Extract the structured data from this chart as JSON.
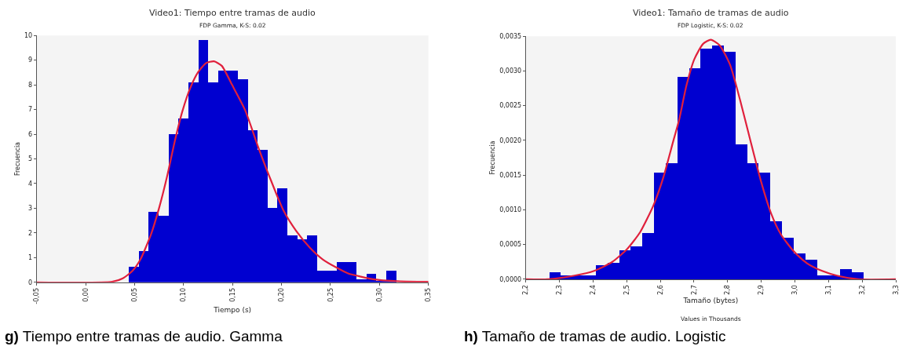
{
  "chart_data": [
    {
      "type": "histogram",
      "title": "Video1: Tiempo entre tramas de audio",
      "subtitle": "FDP Gamma, K-S: 0.02",
      "xlabel": "Tiempo (s)",
      "ylabel": "Frecuencia",
      "bins": [
        0.044,
        0.0541,
        0.0642,
        0.0743,
        0.0844,
        0.0945,
        0.1046,
        0.1147,
        0.1248,
        0.1349,
        0.145,
        0.1551,
        0.1652,
        0.1753,
        0.1854,
        0.1955,
        0.2056,
        0.2157,
        0.2258,
        0.2359,
        0.246,
        0.2561,
        0.2662,
        0.2763,
        0.2864,
        0.2965,
        0.3066,
        0.3167
      ],
      "values": [
        0.62,
        1.27,
        2.86,
        2.69,
        6.01,
        6.64,
        8.08,
        9.82,
        8.08,
        8.56,
        8.56,
        8.23,
        6.17,
        5.37,
        3.01,
        3.81,
        1.9,
        1.74,
        1.9,
        0.47,
        0.47,
        0.8,
        0.8,
        0.13,
        0.33,
        0.03,
        0.47
      ],
      "color": "#0000d0",
      "series": [
        {
          "type": "line",
          "color": "#e0203c",
          "x": [
            -0.05,
            0.027,
            0.038,
            0.048,
            0.056,
            0.067,
            0.075,
            0.083,
            0.091,
            0.099,
            0.107,
            0.115,
            0.123,
            0.131,
            0.139,
            0.1495,
            0.163,
            0.176,
            0.189,
            0.202,
            0.215,
            0.229,
            0.242,
            0.255,
            0.268,
            0.281,
            0.295,
            0.308,
            0.321,
            0.35
          ],
          "values": [
            0,
            0.02,
            0.16,
            0.47,
            0.93,
            1.97,
            3.01,
            4.26,
            5.71,
            6.96,
            7.89,
            8.52,
            8.88,
            8.95,
            8.77,
            8.0,
            6.96,
            5.5,
            4.15,
            2.91,
            2.08,
            1.4,
            0.93,
            0.62,
            0.36,
            0.23,
            0.12,
            0.07,
            0.04,
            0.02
          ]
        }
      ],
      "xlim": [
        -0.05,
        0.35
      ],
      "xticks": [
        {
          "value": -0.05,
          "label": "-0,05"
        },
        {
          "value": 0,
          "label": "0,00"
        },
        {
          "value": 0.05,
          "label": "0,05"
        },
        {
          "value": 0.1,
          "label": "0,10"
        },
        {
          "value": 0.15,
          "label": "0,15"
        },
        {
          "value": 0.2,
          "label": "0,20"
        },
        {
          "value": 0.25,
          "label": "0,25"
        },
        {
          "value": 0.3,
          "label": "0,30"
        },
        {
          "value": 0.35,
          "label": "0,35"
        }
      ],
      "ylim": [
        0,
        10
      ],
      "yticks": [
        0,
        1,
        2,
        3,
        4,
        5,
        6,
        7,
        8,
        9,
        10
      ],
      "grid": false,
      "annotations": [
        "g) Tiempo entre tramas de audio. Gamma"
      ]
    },
    {
      "type": "histogram",
      "title": "Video1: Tamaño de tramas de audio",
      "subtitle": "FDP Logistic, K-S: 0.02",
      "xlabel": "Tamaño (bytes)",
      "ylabel": "Frecuencia",
      "bins": [
        2.2,
        2.2346,
        2.2692,
        2.3038,
        2.3384,
        2.373,
        2.4076,
        2.4422,
        2.4768,
        2.5114,
        2.546,
        2.5806,
        2.6152,
        2.6498,
        2.6844,
        2.719,
        2.7536,
        2.7882,
        2.8228,
        2.8574,
        2.892,
        2.9266,
        2.9612,
        2.9958,
        3.0304,
        3.065,
        3.0996,
        3.1342,
        3.1688,
        3.2034
      ],
      "values": [
        0,
        0,
        0.0001,
        5e-05,
        5e-05,
        5e-05,
        0.0002,
        0.00024,
        0.00042,
        0.00047,
        0.00066,
        0.00153,
        0.00167,
        0.00291,
        0.00304,
        0.00332,
        0.00337,
        0.00327,
        0.00194,
        0.00167,
        0.00153,
        0.00083,
        0.0006,
        0.00037,
        0.00028,
        5e-05,
        5e-05,
        0.00014,
        0.0001
      ],
      "color": "#0000d0",
      "series": [
        {
          "type": "line",
          "color": "#e0203c",
          "x": [
            2.2,
            2.266,
            2.342,
            2.403,
            2.457,
            2.502,
            2.54,
            2.579,
            2.609,
            2.64,
            2.655,
            2.678,
            2.701,
            2.727,
            2.75,
            2.776,
            2.807,
            2.837,
            2.868,
            2.898,
            2.929,
            2.959,
            2.997,
            3.036,
            3.081,
            3.127,
            3.188,
            3.3
          ],
          "values": [
            0,
            0,
            5e-05,
            0.00012,
            0.00025,
            0.00044,
            0.00068,
            0.00106,
            0.00147,
            0.00202,
            0.00228,
            0.0028,
            0.00317,
            0.00339,
            0.00345,
            0.00337,
            0.00309,
            0.00258,
            0.00199,
            0.00143,
            0.00095,
            0.00064,
            0.0004,
            0.00023,
            0.00012,
            5e-05,
            0,
            0
          ]
        }
      ],
      "xlim": [
        2.2,
        3.3
      ],
      "xticks": [
        {
          "value": 2.2,
          "label": "2,2"
        },
        {
          "value": 2.3,
          "label": "2,3"
        },
        {
          "value": 2.4,
          "label": "2,4"
        },
        {
          "value": 2.5,
          "label": "2,5"
        },
        {
          "value": 2.6,
          "label": "2,6"
        },
        {
          "value": 2.7,
          "label": "2,7"
        },
        {
          "value": 2.8,
          "label": "2,8"
        },
        {
          "value": 2.9,
          "label": "2,9"
        },
        {
          "value": 3.0,
          "label": "3,0"
        },
        {
          "value": 3.1,
          "label": "3,1"
        },
        {
          "value": 3.2,
          "label": "3,2"
        },
        {
          "value": 3.3,
          "label": "3,3"
        }
      ],
      "ylim": [
        0,
        0.0035
      ],
      "yticks": [
        {
          "value": 0,
          "label": "0,0000"
        },
        {
          "value": 0.0005,
          "label": "0,0005"
        },
        {
          "value": 0.001,
          "label": "0,0010"
        },
        {
          "value": 0.0015,
          "label": "0,0015"
        },
        {
          "value": 0.002,
          "label": "0,0020"
        },
        {
          "value": 0.0025,
          "label": "0,0025"
        },
        {
          "value": 0.003,
          "label": "0,0030"
        },
        {
          "value": 0.0035,
          "label": "0,0035"
        }
      ],
      "grid": false,
      "annotations": [
        "Values in Thousands",
        "h) Tamaño de tramas de audio. Logistic"
      ]
    }
  ]
}
